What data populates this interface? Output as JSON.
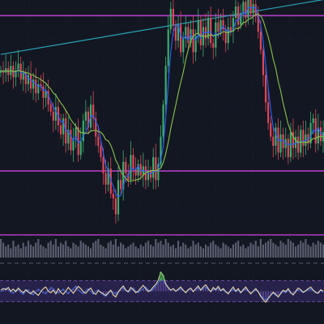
{
  "chart_data": {
    "type": "candlestick",
    "x_points": 130,
    "colors": {
      "background": "#131722",
      "grid": "#232838",
      "bull": "#3dae6f",
      "bear": "#e0485a",
      "ma_fast": "#2962ff",
      "ma_slow": "#8bc34a",
      "trendline": "#26a4b8",
      "horizontal_lines": "#b23cc6",
      "volume": "#6b6f82",
      "rsi_line": "#ead9a0",
      "rsi_band": "#2b2552",
      "rsi_band_line": "#7e57c2",
      "macd_line": "#3f6bdc",
      "macd_histogram": "#7b5fc7",
      "rsi_highlight": "#4caf50"
    },
    "price_panel": {
      "ylim": [
        0,
        100
      ],
      "close": [
        72,
        71,
        73,
        70,
        74,
        69,
        72,
        75,
        68,
        71,
        66,
        70,
        64,
        68,
        62,
        66,
        65,
        60,
        63,
        57,
        54,
        50,
        56,
        48,
        44,
        51,
        40,
        46,
        37,
        42,
        47,
        35,
        41,
        50,
        54,
        47,
        57,
        51,
        43,
        39,
        34,
        27,
        22,
        29,
        18,
        16,
        9,
        24,
        20,
        32,
        27,
        24,
        35,
        29,
        26,
        31,
        26,
        30,
        24,
        28,
        25,
        34,
        24,
        31,
        43,
        57,
        74,
        90,
        99,
        92,
        85,
        92,
        80,
        86,
        91,
        84,
        90,
        80,
        87,
        94,
        83,
        91,
        86,
        95,
        84,
        82,
        93,
        89,
        94,
        90,
        84,
        91,
        89,
        95,
        100,
        92,
        97,
        102,
        95,
        104,
        97,
        101,
        97,
        89,
        81,
        70,
        58,
        49,
        43,
        39,
        47,
        36,
        44,
        38,
        42,
        34,
        45,
        38,
        43,
        36,
        46,
        39,
        44,
        40,
        49,
        51,
        40,
        47,
        41,
        45
      ],
      "horizontal_levels": [
        96,
        28,
        -6
      ],
      "trendline": [
        [
          0,
          79
        ],
        [
          129,
          103
        ]
      ]
    },
    "volume_panel": {
      "volume": [
        1,
        0.8,
        0.6,
        0.7,
        0.5,
        0.9,
        0.6,
        0.7,
        0.5,
        0.8,
        0.6,
        0.9,
        0.7,
        0.6,
        0.8,
        1,
        0.7,
        0.6,
        0.5,
        0.8,
        0.9,
        0.7,
        1,
        0.6,
        0.8,
        0.7,
        0.9,
        0.6,
        0.5,
        0.8,
        0.7,
        0.6,
        0.9,
        0.8,
        0.7,
        0.6,
        0.5,
        0.8,
        0.9,
        1,
        0.7,
        0.6,
        0.5,
        0.8,
        0.9,
        0.7,
        1,
        0.6,
        0.8,
        0.7,
        0.5,
        0.6,
        0.7,
        0.8,
        0.6,
        0.5,
        0.7,
        0.6,
        0.8,
        0.9,
        0.7,
        0.6,
        1,
        0.8,
        0.9,
        0.7,
        1,
        0.8,
        0.6,
        0.7,
        0.5,
        0.9,
        0.6,
        0.8,
        0.7,
        0.5,
        0.6,
        0.9,
        0.7,
        0.8,
        0.6,
        0.5,
        0.7,
        0.6,
        0.8,
        0.9,
        0.7,
        0.6,
        0.5,
        0.8,
        0.7,
        0.6,
        0.5,
        0.7,
        0.8,
        0.9,
        0.6,
        0.7,
        0.5,
        0.6,
        0.8,
        0.7,
        0.9,
        0.6,
        1,
        0.7,
        0.8,
        0.9,
        1,
        0.8,
        0.7,
        0.6,
        0.9,
        0.8,
        0.7,
        1,
        0.9,
        0.8,
        0.6,
        0.7,
        0.9,
        0.8,
        1,
        0.7,
        0.6,
        0.8,
        0.7,
        0.9,
        0.8,
        0.7
      ]
    },
    "rsi_panel": {
      "ylim": [
        0,
        100
      ],
      "bands": [
        70,
        30
      ],
      "rsi": [
        52,
        55,
        53,
        57,
        50,
        54,
        49,
        56,
        51,
        47,
        53,
        48,
        45,
        51,
        46,
        42,
        49,
        55,
        58,
        50,
        47,
        52,
        45,
        55,
        48,
        44,
        50,
        57,
        52,
        46,
        53,
        59,
        55,
        49,
        46,
        52,
        56,
        47,
        44,
        51,
        48,
        45,
        42,
        47,
        52,
        43,
        39,
        48,
        55,
        60,
        52,
        49,
        57,
        53,
        47,
        50,
        56,
        61,
        55,
        49,
        52,
        58,
        63,
        71,
        86,
        80,
        64,
        57,
        52,
        55,
        50,
        54,
        58,
        52,
        47,
        53,
        56,
        49,
        55,
        60,
        52,
        58,
        62,
        55,
        49,
        57,
        53,
        59,
        51,
        55,
        49,
        45,
        52,
        58,
        50,
        55,
        47,
        53,
        58,
        51,
        45,
        50,
        55,
        49,
        40,
        34,
        29,
        36,
        42,
        48,
        44,
        39,
        46,
        52,
        49,
        55,
        47,
        43,
        50,
        56,
        53,
        48,
        51,
        55,
        58,
        52,
        48,
        46,
        53,
        50
      ],
      "macd": [
        49,
        52,
        56,
        53,
        48,
        46,
        52,
        55,
        47,
        44,
        50,
        53,
        46,
        43,
        49,
        54,
        51,
        47,
        45,
        51,
        57,
        55,
        49,
        46,
        50,
        54,
        48,
        45,
        51,
        55,
        60,
        53,
        48,
        45,
        51,
        55,
        49,
        44,
        50,
        53,
        47,
        43,
        40,
        45,
        51,
        48,
        44,
        50,
        54,
        57,
        51,
        48,
        53,
        56,
        50,
        47,
        52,
        55,
        58,
        53,
        50,
        54,
        60,
        66,
        74,
        70,
        62,
        56,
        52,
        54,
        50,
        53,
        55,
        51,
        48,
        52,
        55,
        50,
        53,
        57,
        52,
        55,
        58,
        53,
        49,
        54,
        52,
        56,
        51,
        53,
        48,
        46,
        50,
        54,
        49,
        52,
        47,
        51,
        55,
        50,
        46,
        49,
        53,
        48,
        42,
        37,
        33,
        38,
        43,
        46,
        42,
        40,
        45,
        49,
        47,
        52,
        46,
        44,
        48,
        53,
        50,
        47,
        50,
        53,
        55,
        51,
        47,
        46,
        51,
        49
      ]
    }
  }
}
